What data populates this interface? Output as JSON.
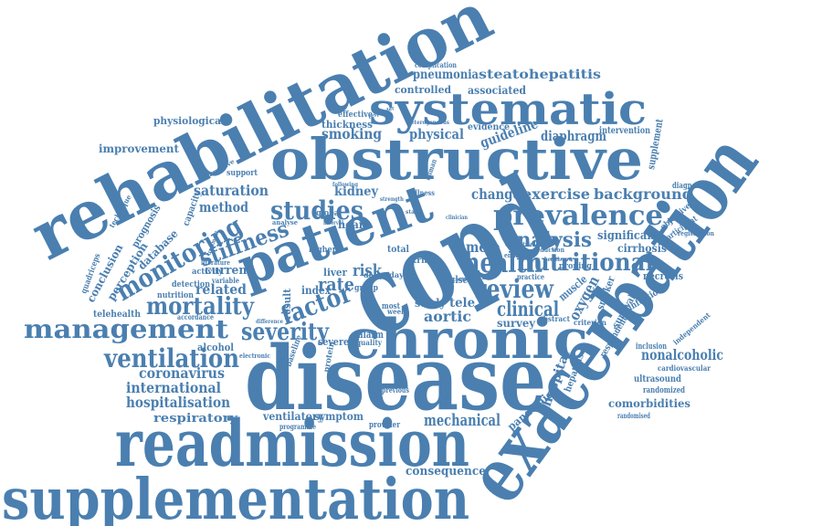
{
  "colors": {
    "word": "#4a7fb0",
    "background": "#ffffff"
  },
  "words": {
    "supplementation": "supplementation",
    "readmission": "readmission",
    "disease": "disease",
    "copd": "copd",
    "exacerbation": "exacerbation",
    "rehabilitation": "rehabilitation",
    "obstructive": "obstructive",
    "systematic": "systematic",
    "chronic": "chronic",
    "patient": "patient",
    "prevalence": "prevalence",
    "management": "management",
    "ventilation": "ventilation",
    "monitoring": "monitoring",
    "nutritional": "nutritional",
    "mortality": "mortality",
    "health": "health",
    "review": "review",
    "studies": "studies",
    "stiffness": "stiffness",
    "severity": "severity",
    "analysis": "analysis",
    "factor": "factor",
    "clinical": "clinical",
    "mechanical": "mechanical",
    "hospitalisation": "hospitalisation",
    "international": "international",
    "coronavirus": "coronavirus",
    "respiratory": "respiratory",
    "consequence": "consequence",
    "smoking": "smoking",
    "physical": "physical",
    "guideline": "guideline",
    "diaphragm": "diaphragm",
    "background": "background",
    "change": "change",
    "exercise": "exercise",
    "saturation": "saturation",
    "method": "method",
    "kidney": "kidney",
    "heart": "heart",
    "meta": "meta",
    "significant": "significant",
    "cirrhosis": "cirrhosis",
    "oxygen": "oxygen",
    "hospital": "hospital",
    "pandemic": "pandemic",
    "nonalcoholic": "nonalcoholic",
    "comorbidities": "comorbidities",
    "steatohepatitis": "steatohepatitis",
    "pneumonia": "pneumonia",
    "associated": "associated",
    "controlled": "controlled",
    "improvement": "improvement",
    "physiological": "physiological",
    "related": "related",
    "current": "current",
    "alcohol": "alcohol",
    "conclusion": "conclusion",
    "perception": "perception",
    "database": "database",
    "prognosis": "prognosis",
    "telehealth": "telehealth",
    "nutrition": "nutrition",
    "supplement": "supplement",
    "intervention": "intervention",
    "effective": "effective",
    "thickness": "thickness",
    "evidence": "evidence",
    "rate": "rate",
    "risk": "risk",
    "liver": "liver",
    "index": "index",
    "result": "result",
    "aortic": "aortic",
    "tele": "tele",
    "survey": "survey",
    "study": "study",
    "pulse": "pulse",
    "cause": "cause",
    "severe": "severe",
    "group": "group",
    "alarm": "alarm",
    "ventilatory": "ventilatory",
    "symptom": "symptom",
    "provider": "provider",
    "programme": "programme",
    "previous": "previous",
    "ultrasound": "ultrasound",
    "randomized": "randomized",
    "randomised": "randomised",
    "cardiovascular": "cardiovascular",
    "inclusion": "inclusion",
    "independent": "independent",
    "infection": "infection",
    "survival": "survival",
    "necrosis": "necrosis",
    "muscle": "muscle",
    "smoker": "smoker",
    "proning": "proning",
    "diagnostic": "diagnostic",
    "objective": "objective",
    "participant": "participant",
    "registration": "registration",
    "respondent": "respondent",
    "hepatitis": "hepatitis",
    "criterion": "criterion",
    "complication": "complication",
    "detection": "detection",
    "activity": "activity",
    "accordance": "accordance",
    "quadriceps": "quadriceps",
    "capacity": "capacity",
    "technique": "technique",
    "global": "global",
    "higher": "higher",
    "baseline": "baseline",
    "protein": "protein",
    "total": "total",
    "most": "most",
    "week": "week",
    "practice": "practice",
    "quality": "quality",
    "abstract": "abstract",
    "daily": "daily",
    "trial": "trial",
    "support": "support",
    "narrative": "narrative",
    "literature": "literature",
    "variable": "variable",
    "electronic": "electronic",
    "reduction": "reduction",
    "enhance": "enhance",
    "countrie": "countrie",
    "heterogeneous": "heterogeneous",
    "responder": "responder",
    "illness": "illness",
    "human": "human",
    "interval": "interval",
    "strength": "strength",
    "following": "following",
    "analyse": "analyse",
    "healthcare": "healthcare",
    "clinician": "clinician",
    "control": "control",
    "difference": "difference",
    "treatment": "treatment",
    "stage": "stage",
    "day": "day"
  }
}
